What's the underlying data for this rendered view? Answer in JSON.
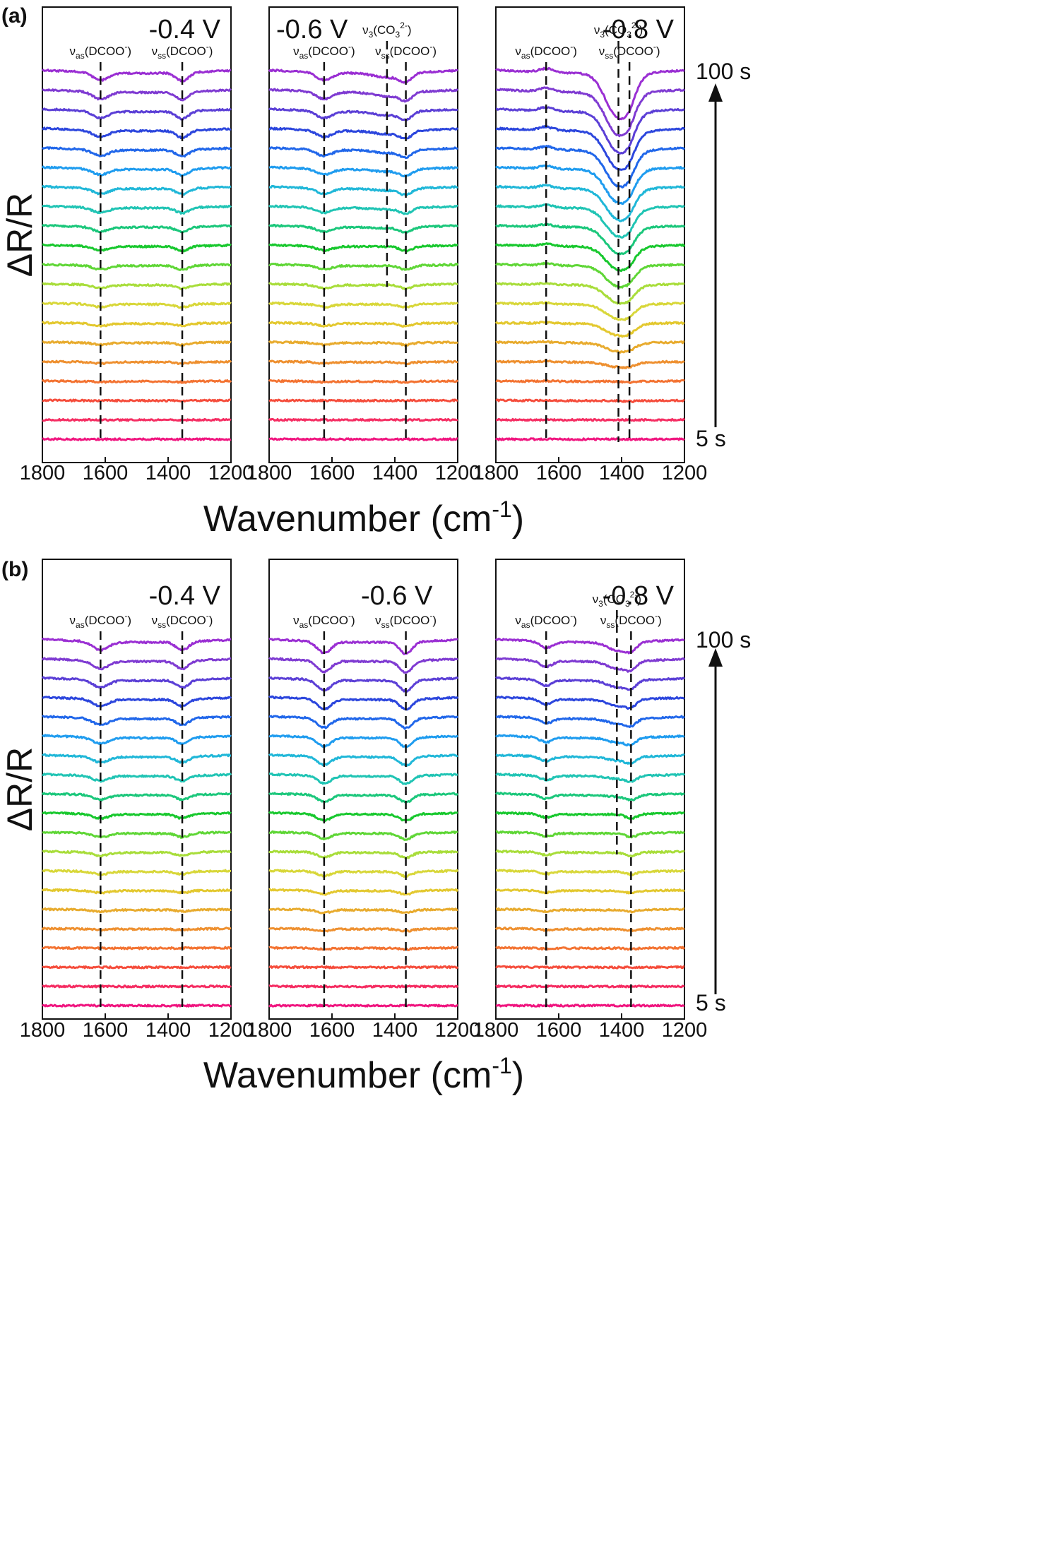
{
  "figure": {
    "panels": [
      {
        "label": "(a)",
        "ylabel": "ΔR/R",
        "xlabel": "Wavenumber",
        "xlabel_unit": "cm",
        "xlabel_unit_sup": "-1",
        "time_top": "100 s",
        "time_bottom": "5 s"
      },
      {
        "label": "(b)",
        "ylabel": "ΔR/R",
        "xlabel": "Wavenumber",
        "xlabel_unit": "cm",
        "xlabel_unit_sup": "-1",
        "time_top": "100 s",
        "time_bottom": "5 s"
      }
    ]
  },
  "chart_data": [
    {
      "type": "line",
      "panel": "(a)",
      "title": "-0.4 V",
      "xlim": [
        1800,
        1200
      ],
      "x_ticks": [
        1800,
        1600,
        1400,
        1200
      ],
      "n_spectra": 20,
      "time_range_s": [
        5,
        100
      ],
      "bands": [
        {
          "sym": "ν",
          "sub": "as",
          "species": "(DCOO",
          "sup": "-",
          "close": ")",
          "x": 1615,
          "max_depth": 1.2,
          "width": 25,
          "onset": 2
        },
        {
          "sym": "ν",
          "sub": "ss",
          "species": "(DCOO",
          "sup": "-",
          "close": ")",
          "x": 1355,
          "max_depth": 1.3,
          "width": 20,
          "onset": 2
        }
      ]
    },
    {
      "type": "line",
      "panel": "(a)",
      "title": "-0.6 V",
      "xlim": [
        1800,
        1200
      ],
      "x_ticks": [
        1800,
        1600,
        1400,
        1200
      ],
      "n_spectra": 20,
      "time_range_s": [
        5,
        100
      ],
      "bands": [
        {
          "sym": "ν",
          "sub": "as",
          "species": "(DCOO",
          "sup": "-",
          "close": ")",
          "x": 1625,
          "max_depth": 1.2,
          "width": 25,
          "onset": 2
        },
        {
          "sym": "ν",
          "sub": "3",
          "species": "(CO",
          "sub2": "3",
          "sup": "2-",
          "close": ")",
          "x": 1425,
          "max_depth": 0.7,
          "width": 40,
          "onset": 10
        },
        {
          "sym": "ν",
          "sub": "ss",
          "species": "(DCOO",
          "sup": "-",
          "close": ")",
          "x": 1365,
          "max_depth": 1.3,
          "width": 20,
          "onset": 2
        }
      ]
    },
    {
      "type": "line",
      "panel": "(a)",
      "title": "-0.8 V",
      "xlim": [
        1800,
        1200
      ],
      "x_ticks": [
        1800,
        1600,
        1400,
        1200
      ],
      "n_spectra": 20,
      "time_range_s": [
        5,
        100
      ],
      "bands": [
        {
          "sym": "ν",
          "sub": "as",
          "species": "(DCOO",
          "sup": "-",
          "close": ")",
          "x": 1640,
          "max_depth": -0.6,
          "width": 22,
          "onset": 2
        },
        {
          "sym": "ν",
          "sub": "3",
          "species": "(CO",
          "sub2": "3",
          "sup": "2-",
          "close": ")",
          "x": 1410,
          "max_depth": 7.0,
          "width": 40,
          "onset": 3
        },
        {
          "sym": "ν",
          "sub": "ss",
          "species": "(DCOO",
          "sup": "-",
          "close": ")",
          "x": 1375,
          "max_depth": 1.2,
          "width": 18,
          "onset": 1
        }
      ]
    },
    {
      "type": "line",
      "panel": "(b)",
      "title": "-0.4 V",
      "xlim": [
        1800,
        1200
      ],
      "x_ticks": [
        1800,
        1600,
        1400,
        1200
      ],
      "n_spectra": 20,
      "time_range_s": [
        5,
        100
      ],
      "bands": [
        {
          "sym": "ν",
          "sub": "as",
          "species": "(DCOO",
          "sup": "-",
          "close": ")",
          "x": 1615,
          "max_depth": 1.3,
          "width": 25,
          "onset": 3
        },
        {
          "sym": "ν",
          "sub": "ss",
          "species": "(DCOO",
          "sup": "-",
          "close": ")",
          "x": 1355,
          "max_depth": 1.3,
          "width": 20,
          "onset": 3
        }
      ]
    },
    {
      "type": "line",
      "panel": "(b)",
      "title": "-0.6 V",
      "xlim": [
        1800,
        1200
      ],
      "x_ticks": [
        1800,
        1600,
        1400,
        1200
      ],
      "n_spectra": 20,
      "time_range_s": [
        5,
        100
      ],
      "bands": [
        {
          "sym": "ν",
          "sub": "as",
          "species": "(DCOO",
          "sup": "-",
          "close": ")",
          "x": 1625,
          "max_depth": 1.8,
          "width": 22,
          "onset": 2
        },
        {
          "sym": "ν",
          "sub": "ss",
          "species": "(DCOO",
          "sup": "-",
          "close": ")",
          "x": 1365,
          "max_depth": 1.9,
          "width": 20,
          "onset": 2
        }
      ]
    },
    {
      "type": "line",
      "panel": "(b)",
      "title": "-0.8 V",
      "xlim": [
        1800,
        1200
      ],
      "x_ticks": [
        1800,
        1600,
        1400,
        1200
      ],
      "n_spectra": 20,
      "time_range_s": [
        5,
        100
      ],
      "bands": [
        {
          "sym": "ν",
          "sub": "as",
          "species": "(DCOO",
          "sup": "-",
          "close": ")",
          "x": 1640,
          "max_depth": 1.0,
          "width": 20,
          "onset": 2
        },
        {
          "sym": "ν",
          "sub": "3",
          "species": "(CO",
          "sub2": "3",
          "sup": "2-",
          "close": ")",
          "x": 1415,
          "max_depth": 1.3,
          "width": 30,
          "onset": 10
        },
        {
          "sym": "ν",
          "sub": "ss",
          "species": "(DCOO",
          "sup": "-",
          "close": ")",
          "x": 1370,
          "max_depth": 1.2,
          "width": 18,
          "onset": 2
        }
      ]
    }
  ]
}
